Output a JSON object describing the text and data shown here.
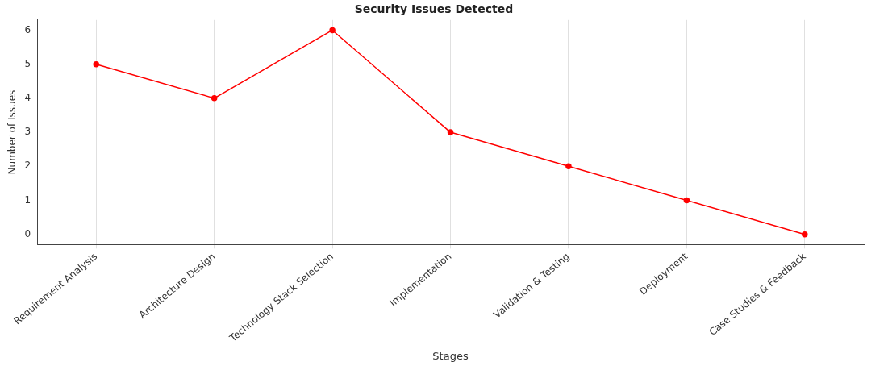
{
  "chart_data": {
    "type": "line",
    "title": "Security Issues Detected",
    "xlabel": "Stages",
    "ylabel": "Number of Issues",
    "categories": [
      "Requirement Analysis",
      "Architecture Design",
      "Technology Stack Selection",
      "Implementation",
      "Validation & Testing",
      "Deployment",
      "Case Studies & Feedback"
    ],
    "series": [
      {
        "color": "#ff0000",
        "values": [
          5,
          4,
          6,
          3,
          2,
          1,
          0
        ]
      }
    ],
    "ylim": [
      -0.3,
      6.3
    ],
    "yticks": [
      0,
      1,
      2,
      3,
      4,
      5,
      6
    ],
    "grid": "x",
    "legend": false,
    "marker": "circle",
    "line_style": "solid"
  }
}
